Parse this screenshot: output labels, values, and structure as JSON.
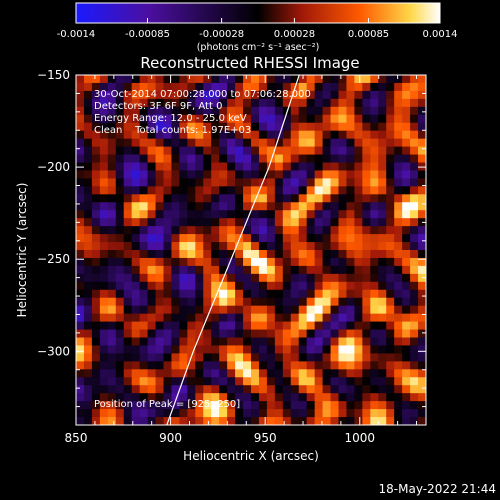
{
  "chart_data": {
    "type": "heatmap",
    "title": "Reconstructed RHESSI Image",
    "xlabel": "Heliocentric X (arcsec)",
    "ylabel": "Heliocentric Y (arcsec)",
    "xlim": [
      850,
      1035
    ],
    "ylim": [
      -340,
      -150
    ],
    "x_ticks": [
      "850",
      "900",
      "950",
      "1000"
    ],
    "y_ticks": [
      "-150",
      "-200",
      "-250",
      "-300"
    ],
    "colorbar": {
      "min": -0.0014,
      "max": 0.0014,
      "tick_labels": [
        "-0.0014",
        "-0.00085",
        "-0.00028",
        "0.00028",
        "0.00085",
        "0.0014"
      ],
      "units_line": "(photons cm⁻² s⁻¹ asec⁻²)",
      "colors": [
        "#1a1aff",
        "#4b0fa0",
        "#000000",
        "#a01808",
        "#ff5a00",
        "#ffd84a",
        "#ffffff"
      ]
    },
    "info_lines": [
      "30-Oct-2014 07:00:28.000 to 07:06:28.000",
      "Detectors: 3F 6F 9F, Att 0",
      "Energy Range: 12.0 - 25.0 keV",
      "Clean    Total counts: 1.97E+03"
    ],
    "peak_label": "Position of Peak = [925,-250]",
    "peak": [
      925,
      -250
    ],
    "limb_points": [
      [
        898,
        -340
      ],
      [
        905,
        -320
      ],
      [
        912,
        -300
      ],
      [
        920,
        -280
      ],
      [
        928,
        -260
      ],
      [
        936,
        -240
      ],
      [
        944,
        -220
      ],
      [
        952,
        -200
      ],
      [
        960,
        -175
      ],
      [
        968,
        -150
      ]
    ],
    "image_colormap": "RHESSI red temperature with purple negatives"
  },
  "footer": {
    "date": "18-May-2022 21:44"
  }
}
